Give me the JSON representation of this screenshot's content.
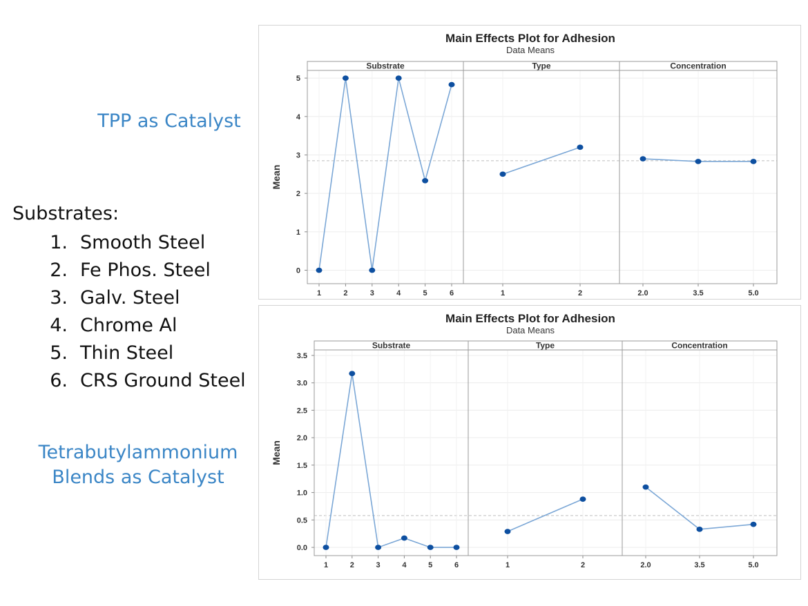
{
  "left": {
    "label_top": "TPP as Catalyst",
    "label_bottom_line1": "Tetrabutylammonium",
    "label_bottom_line2": "Blends as Catalyst",
    "substrates_heading": "Substrates:",
    "substrates": [
      {
        "num": "1.",
        "name": "Smooth Steel"
      },
      {
        "num": "2.",
        "name": "Fe Phos. Steel"
      },
      {
        "num": "3.",
        "name": "Galv. Steel"
      },
      {
        "num": "4.",
        "name": "Chrome Al"
      },
      {
        "num": "5.",
        "name": "Thin Steel"
      },
      {
        "num": "6.",
        "name": "CRS Ground Steel"
      }
    ]
  },
  "colors": {
    "accent_text": "#3b86c6",
    "line": "#7ba7d6",
    "point": "#0d4fa0",
    "reference": "#bdbdbd"
  },
  "chart_data": [
    {
      "type": "line",
      "title": "Main Effects Plot for Adhesion",
      "subtitle": "Data Means",
      "ylabel": "Mean",
      "ylim": [
        -0.35,
        5.2
      ],
      "yticks": [
        0,
        1,
        2,
        3,
        4,
        5
      ],
      "ytick_labels": [
        "0",
        "1",
        "2",
        "3",
        "4",
        "5"
      ],
      "reference_line": 2.85,
      "grid": true,
      "panels": [
        {
          "name": "Substrate",
          "x": [
            "1",
            "2",
            "3",
            "4",
            "5",
            "6"
          ],
          "values": [
            0,
            5,
            0,
            5,
            2.33,
            4.83
          ]
        },
        {
          "name": "Type",
          "x": [
            "1",
            "2"
          ],
          "values": [
            2.5,
            3.2
          ]
        },
        {
          "name": "Concentration",
          "x": [
            "2.0",
            "3.5",
            "5.0"
          ],
          "values": [
            2.9,
            2.83,
            2.83
          ]
        }
      ]
    },
    {
      "type": "line",
      "title": "Main Effects Plot for Adhesion",
      "subtitle": "Data Means",
      "ylabel": "Mean",
      "ylim": [
        -0.15,
        3.6
      ],
      "yticks": [
        0,
        0.5,
        1,
        1.5,
        2,
        2.5,
        3,
        3.5
      ],
      "ytick_labels": [
        "0.0",
        "0.5",
        "1.0",
        "1.5",
        "2.0",
        "2.5",
        "3.0",
        "3.5"
      ],
      "reference_line": 0.58,
      "grid": true,
      "panels": [
        {
          "name": "Substrate",
          "x": [
            "1",
            "2",
            "3",
            "4",
            "5",
            "6"
          ],
          "values": [
            0,
            3.17,
            0,
            0.17,
            0,
            0
          ]
        },
        {
          "name": "Type",
          "x": [
            "1",
            "2"
          ],
          "values": [
            0.29,
            0.88
          ]
        },
        {
          "name": "Concentration",
          "x": [
            "2.0",
            "3.5",
            "5.0"
          ],
          "values": [
            1.1,
            0.33,
            0.42
          ]
        }
      ]
    }
  ]
}
